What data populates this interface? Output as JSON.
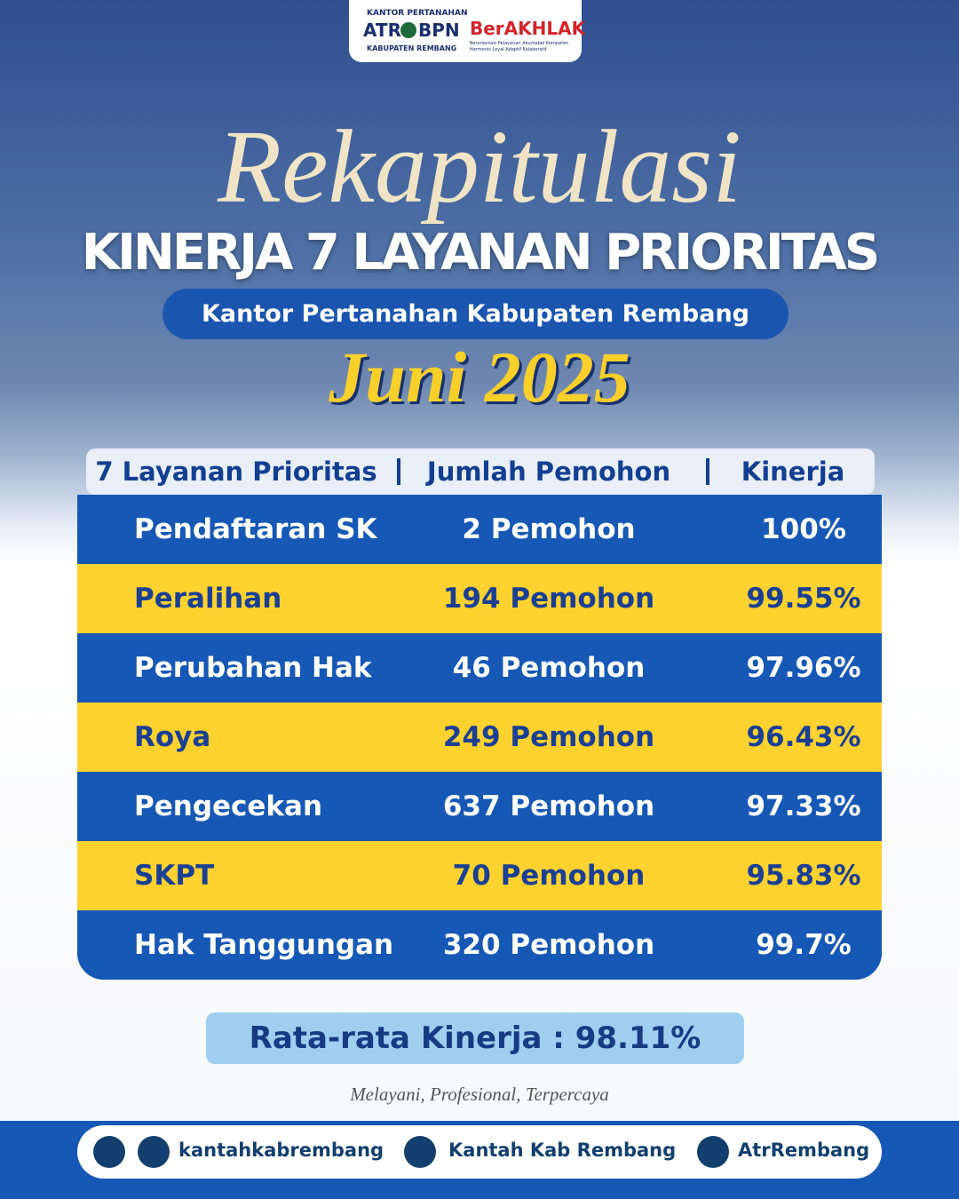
{
  "header": {
    "logo_office_top": "KANTOR PERTANAHAN",
    "logo_atr": "ATR",
    "logo_bpn": "BPN",
    "logo_office_bottom": "KABUPATEN REMBANG",
    "berakhlak": "BerAKHLAK",
    "berakhlak_tagline": "Berorientasi Pelayanan Akuntabel Kompeten Harmonis Loyal Adaptif Kolaboratif"
  },
  "title": {
    "script": "Rekapitulasi",
    "main": "KINERJA 7 LAYANAN PRIORITAS",
    "subtitle": "Kantor Pertanahan Kabupaten Rembang",
    "period": "Juni 2025"
  },
  "table": {
    "columns": [
      "7 Layanan Prioritas",
      "Jumlah Pemohon",
      "Kinerja"
    ],
    "rows": [
      [
        "Pendaftaran SK",
        "2 Pemohon",
        "100%"
      ],
      [
        "Peralihan",
        "194 Pemohon",
        "99.55%"
      ],
      [
        "Perubahan Hak",
        "46 Pemohon",
        "97.96%"
      ],
      [
        "Roya",
        "249 Pemohon",
        "96.43%"
      ],
      [
        "Pengecekan",
        "637 Pemohon",
        "97.33%"
      ],
      [
        "SKPT",
        "70 Pemohon",
        "95.83%"
      ],
      [
        "Hak Tanggungan",
        "320 Pemohon",
        "99.7%"
      ]
    ]
  },
  "average": "Rata-rata Kinerja : 98.11%",
  "tagline": "Melayani, Profesional, Terpercaya",
  "footer": {
    "instagram_youtube": "kantahkabrembang",
    "facebook": "Kantah Kab Rembang",
    "twitter": "AtrRembang"
  }
}
